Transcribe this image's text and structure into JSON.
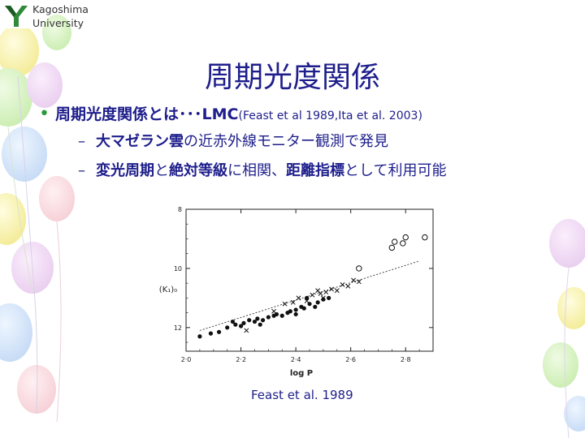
{
  "header": {
    "university_line1": "Kagoshima",
    "university_line2": "University"
  },
  "slide": {
    "title": "周期光度関係",
    "bullet1": {
      "main": "周期光度関係とは･･･LMC",
      "ref": "(Feast et al 1989,Ita et al. 2003)"
    },
    "sub1": {
      "bold": "大マゼラン雲",
      "rest": "の近赤外線モニター観測で発見"
    },
    "sub2": {
      "bold1": "変光周期",
      "mid1": "と",
      "bold2": "絶対等級",
      "mid2": "に相関、",
      "bold3": "距離指標",
      "rest": "として利用可能"
    },
    "caption": "Feast et al. 1989"
  },
  "chart_data": {
    "type": "scatter",
    "xlabel": "log P",
    "ylabel": "(K₁)₀",
    "xlim": [
      2.0,
      2.9
    ],
    "ylim": [
      12.8,
      8.0
    ],
    "y_inverted": true,
    "x_ticks": [
      "2·0",
      "2·2",
      "2·4",
      "2·6",
      "2·8"
    ],
    "x_tick_values": [
      2.0,
      2.2,
      2.4,
      2.6,
      2.8
    ],
    "y_ticks": [
      "8",
      "10",
      "12"
    ],
    "y_tick_values": [
      8,
      10,
      12
    ],
    "fit_line": {
      "x": [
        2.05,
        2.85
      ],
      "y": [
        12.1,
        9.75
      ]
    },
    "series": [
      {
        "marker": "filled-circle",
        "points": [
          [
            2.05,
            12.3
          ],
          [
            2.09,
            12.2
          ],
          [
            2.12,
            12.15
          ],
          [
            2.15,
            12.0
          ],
          [
            2.17,
            11.8
          ],
          [
            2.18,
            11.9
          ],
          [
            2.2,
            11.95
          ],
          [
            2.21,
            11.85
          ],
          [
            2.23,
            11.75
          ],
          [
            2.25,
            11.8
          ],
          [
            2.26,
            11.7
          ],
          [
            2.28,
            11.75
          ],
          [
            2.3,
            11.65
          ],
          [
            2.32,
            11.6
          ],
          [
            2.33,
            11.55
          ],
          [
            2.35,
            11.6
          ],
          [
            2.37,
            11.5
          ],
          [
            2.38,
            11.45
          ],
          [
            2.4,
            11.4
          ],
          [
            2.42,
            11.3
          ],
          [
            2.43,
            11.35
          ],
          [
            2.45,
            11.2
          ],
          [
            2.47,
            11.3
          ],
          [
            2.48,
            11.15
          ],
          [
            2.5,
            11.05
          ],
          [
            2.52,
            11.0
          ],
          [
            2.27,
            11.9
          ],
          [
            2.4,
            11.55
          ],
          [
            2.44,
            11.0
          ]
        ]
      },
      {
        "marker": "cross",
        "points": [
          [
            2.22,
            12.1
          ],
          [
            2.32,
            11.45
          ],
          [
            2.36,
            11.2
          ],
          [
            2.39,
            11.15
          ],
          [
            2.41,
            11.0
          ],
          [
            2.44,
            11.1
          ],
          [
            2.46,
            10.9
          ],
          [
            2.49,
            10.85
          ],
          [
            2.51,
            10.8
          ],
          [
            2.53,
            10.7
          ],
          [
            2.55,
            10.75
          ],
          [
            2.57,
            10.55
          ],
          [
            2.59,
            10.6
          ],
          [
            2.61,
            10.4
          ],
          [
            2.63,
            10.45
          ],
          [
            2.5,
            11.0
          ],
          [
            2.48,
            10.75
          ]
        ]
      },
      {
        "marker": "open-circle",
        "points": [
          [
            2.63,
            10.0
          ],
          [
            2.75,
            9.3
          ],
          [
            2.76,
            9.1
          ],
          [
            2.79,
            9.15
          ],
          [
            2.8,
            8.95
          ],
          [
            2.87,
            8.95
          ]
        ]
      }
    ]
  }
}
